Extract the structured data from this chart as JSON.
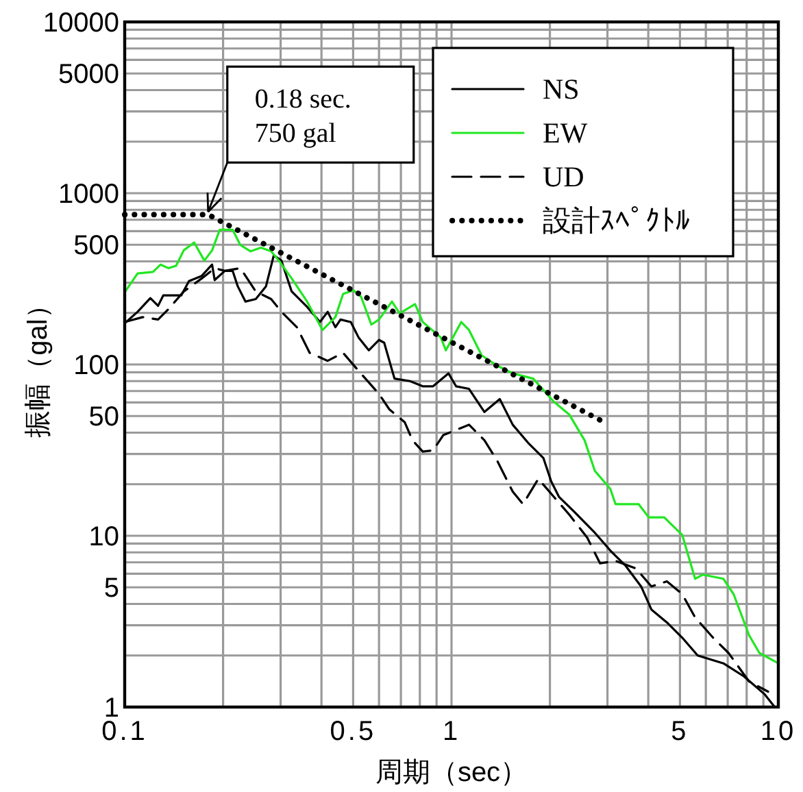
{
  "chart_data": {
    "type": "line",
    "xlabel": "周期（sec）",
    "ylabel": "振幅（gal）",
    "log": "xy",
    "grid": true,
    "legend": "top right",
    "xlim": [
      0.1,
      10
    ],
    "xticks": [
      0.1,
      0.5,
      1,
      5,
      10
    ],
    "ylim": [
      1,
      10000
    ],
    "yticks": [
      1,
      5,
      10,
      50,
      100,
      500,
      1000,
      5000,
      10000
    ],
    "annotations": [
      {
        "text": "0.18 sec.\n750 gal",
        "x": 0.18,
        "y": 750
      }
    ],
    "series": [
      {
        "name": "NS",
        "color": "#000000",
        "line_style": "solid",
        "x": [
          0.1,
          0.1095,
          0.1198,
          0.1265,
          0.1312,
          0.1489,
          0.1573,
          0.1721,
          0.1851,
          0.1885,
          0.2025,
          0.2139,
          0.2218,
          0.2342,
          0.2518,
          0.2706,
          0.2858,
          0.3017,
          0.3243,
          0.3615,
          0.3958,
          0.4179,
          0.4412,
          0.4575,
          0.4918,
          0.5193,
          0.5583,
          0.6002,
          0.6223,
          0.6692,
          0.746,
          0.8165,
          0.878,
          0.979,
          1.033,
          1.131,
          1.261,
          1.405,
          1.539,
          1.715,
          1.911,
          2.018,
          2.131,
          2.376,
          2.746,
          3.061,
          3.412,
          3.803,
          4.089,
          4.559,
          5.082,
          5.664,
          6.789,
          7.848,
          9.069,
          9.75
        ],
        "values": [
          174,
          203,
          244,
          220,
          253,
          253,
          307,
          329,
          383,
          311,
          352,
          352,
          286,
          233,
          241,
          286,
          433,
          404,
          267,
          217,
          177,
          203,
          165,
          183,
          177,
          144,
          121,
          139,
          134,
          82.7,
          80,
          74.6,
          74.6,
          88.7,
          74.6,
          72.1,
          52.8,
          62.8,
          44.5,
          34.9,
          28.4,
          20.8,
          16.9,
          13.8,
          10.4,
          8.2,
          6.67,
          5.06,
          3.71,
          3.12,
          2.54,
          2.0,
          1.8,
          1.51,
          1.19,
          1.0
        ]
      },
      {
        "name": "EW",
        "color": "#22e622",
        "line_style": "solid",
        "x": [
          0.1,
          0.1095,
          0.122,
          0.1288,
          0.136,
          0.1436,
          0.1516,
          0.1631,
          0.1753,
          0.1851,
          0.1954,
          0.2139,
          0.2259,
          0.2427,
          0.261,
          0.2806,
          0.2963,
          0.3243,
          0.3615,
          0.403,
          0.4412,
          0.4658,
          0.5007,
          0.5287,
          0.5684,
          0.6002,
          0.6572,
          0.6939,
          0.7734,
          0.8165,
          0.9268,
          0.961,
          1.071,
          1.131,
          1.237,
          1.38,
          1.539,
          1.778,
          2.055,
          2.291,
          2.554,
          2.746,
          3.061,
          3.175,
          3.736,
          4.016,
          4.477,
          5.082,
          5.562,
          5.873,
          6.789,
          7.297,
          8.136,
          8.747,
          10
        ],
        "values": [
          264,
          340,
          347,
          383,
          365,
          377,
          464,
          515,
          404,
          464,
          612,
          612,
          498,
          458,
          481,
          458,
          404,
          318,
          233,
          159,
          189,
          258,
          271,
          249,
          171,
          183,
          233,
          199,
          225,
          177,
          144,
          121,
          177,
          159,
          113,
          98.4,
          88.7,
          82.7,
          60.7,
          51.1,
          36.1,
          23.9,
          18.8,
          15.3,
          15.3,
          12.8,
          12.8,
          10.1,
          5.61,
          5.93,
          5.61,
          4.56,
          2.63,
          2.07,
          1.8
        ]
      },
      {
        "name": "UD",
        "color": "#000000",
        "line_style": "dashed",
        "x": [
          0.1,
          0.1135,
          0.1265,
          0.136,
          0.1516,
          0.1721,
          0.1885,
          0.2025,
          0.2259,
          0.2518,
          0.2806,
          0.3017,
          0.3364,
          0.3681,
          0.4179,
          0.4658,
          0.5193,
          0.6002,
          0.6453,
          0.7193,
          0.7596,
          0.8165,
          0.878,
          0.9437,
          1.033,
          1.131,
          1.261,
          1.38,
          1.539,
          1.654,
          1.844,
          2.055,
          2.291,
          2.602,
          2.848,
          3.175,
          3.669,
          4.089,
          4.559,
          5.082,
          5.562,
          6.315,
          7.039,
          8.136,
          9.303
        ],
        "values": [
          177,
          189,
          183,
          210,
          267,
          318,
          365,
          352,
          365,
          267,
          241,
          203,
          165,
          117,
          105,
          117,
          91.8,
          67.3,
          54.7,
          46,
          36.1,
          31,
          31.5,
          38.7,
          41.5,
          44.5,
          36.1,
          27.4,
          18.1,
          15.3,
          21.5,
          16.9,
          13.3,
          9.75,
          6.9,
          7.14,
          6.44,
          5.06,
          5.42,
          4.56,
          3.34,
          2.54,
          2.07,
          1.41,
          1.23
        ]
      },
      {
        "name": "設計ｽﾍﾟｸﾄﾙ",
        "color": "#000000",
        "line_style": "dotted",
        "x": [
          0.1,
          0.18,
          1,
          3
        ],
        "values": [
          750,
          750,
          135,
          45
        ]
      }
    ]
  }
}
